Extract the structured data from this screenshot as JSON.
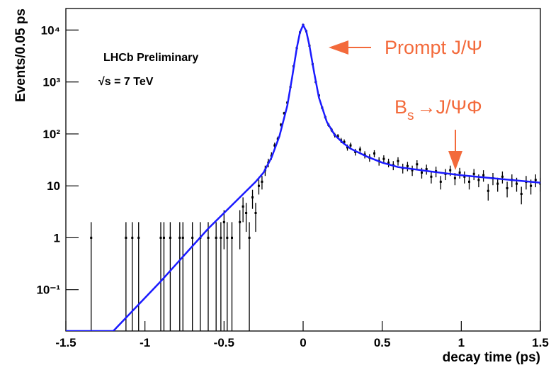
{
  "chart_data": {
    "type": "scatter",
    "x_label": "decay time (ps)",
    "y_label": "Events/0.05 ps",
    "annotations": [
      "LHCb Preliminary",
      "√s = 7 TeV",
      "Prompt J/Ψ"
    ],
    "bs_annotation": [
      "B",
      "s",
      "→J/ΨΦ"
    ],
    "log_y": true,
    "xlim": [
      -1.5,
      1.5
    ],
    "xticks": [
      -1.5,
      -1,
      -0.5,
      0,
      0.5,
      1,
      1.5
    ],
    "ylim": [
      0.016,
      26000
    ],
    "yticks": [
      {
        "value": 0.1,
        "label": "10⁻¹"
      },
      1,
      10,
      {
        "value": 100,
        "label": "10²"
      },
      {
        "value": 1000,
        "label": "10³"
      },
      {
        "value": 10000,
        "label": "10⁴"
      }
    ],
    "points": {
      "color": "#000000",
      "x": [
        -1.34,
        -1.12,
        -1.08,
        -1.04,
        -0.9,
        -0.88,
        -0.84,
        -0.78,
        -0.76,
        -0.7,
        -0.65,
        -0.6,
        -0.55,
        -0.52,
        -0.5,
        -0.48,
        -0.45,
        -0.4,
        -0.38,
        -0.36,
        -0.34,
        -0.32,
        -0.3,
        -0.28,
        -0.26,
        -0.24,
        -0.22,
        -0.2,
        -0.18,
        -0.16,
        -0.14,
        -0.12,
        -0.1,
        -0.08,
        -0.06,
        -0.04,
        -0.02,
        0,
        0.02,
        0.04,
        0.06,
        0.08,
        0.1,
        0.12,
        0.14,
        0.16,
        0.18,
        0.2,
        0.22,
        0.24,
        0.26,
        0.28,
        0.3,
        0.33,
        0.36,
        0.39,
        0.42,
        0.45,
        0.48,
        0.51,
        0.54,
        0.57,
        0.6,
        0.63,
        0.66,
        0.69,
        0.72,
        0.75,
        0.78,
        0.81,
        0.84,
        0.87,
        0.9,
        0.93,
        0.96,
        0.99,
        1.02,
        1.05,
        1.08,
        1.11,
        1.14,
        1.17,
        1.2,
        1.23,
        1.26,
        1.29,
        1.32,
        1.35,
        1.38,
        1.41,
        1.44,
        1.47,
        1.5
      ],
      "values": [
        1,
        1,
        1,
        1,
        1,
        1,
        1,
        1,
        1,
        1,
        1,
        1,
        1,
        1,
        2,
        1,
        1,
        2,
        4,
        3,
        1,
        6,
        3,
        10,
        12,
        20,
        28,
        38,
        60,
        80,
        150,
        250,
        400,
        800,
        2000,
        4500,
        9000,
        12500,
        9500,
        5000,
        2200,
        1000,
        550,
        320,
        210,
        150,
        120,
        95,
        90,
        75,
        70,
        55,
        60,
        45,
        50,
        40,
        35,
        42,
        30,
        33,
        28,
        25,
        30,
        22,
        24,
        20,
        26,
        18,
        21,
        15,
        19,
        12,
        17,
        20,
        14,
        18,
        15,
        12,
        17,
        13,
        16,
        8,
        14,
        11,
        15,
        9,
        13,
        11,
        7,
        12,
        10,
        13,
        11
      ],
      "errors": [
        1,
        1,
        1,
        1,
        1,
        1,
        1,
        1,
        1,
        1,
        1,
        1,
        1,
        1,
        1.4,
        1,
        1,
        1.4,
        2,
        1.7,
        1,
        2.4,
        1.7,
        3.2,
        3.5,
        4.5,
        5.3,
        6.2,
        7.7,
        8.9,
        12,
        16,
        20,
        28,
        45,
        67,
        95,
        112,
        97,
        71,
        47,
        32,
        23,
        18,
        14,
        12,
        11,
        9.7,
        9.5,
        8.7,
        8.4,
        7.4,
        7.7,
        6.7,
        7.1,
        6.3,
        5.9,
        6.5,
        5.5,
        5.7,
        5.3,
        5,
        5.5,
        4.7,
        4.9,
        4.5,
        5.1,
        4.2,
        4.6,
        3.9,
        4.4,
        3.5,
        4.1,
        4.5,
        3.7,
        4.2,
        3.9,
        3.5,
        4.1,
        3.6,
        4,
        2.8,
        3.7,
        3.3,
        3.9,
        3,
        3.6,
        3.3,
        2.6,
        3.5,
        3.2,
        3.6,
        3.3
      ]
    },
    "fit": {
      "color": "#1a1aff",
      "x": [
        -1.5,
        -1.2,
        -0.9,
        -0.6,
        -0.3,
        -0.25,
        -0.2,
        -0.15,
        -0.1,
        -0.07,
        -0.04,
        -0.02,
        0,
        0.02,
        0.04,
        0.07,
        0.1,
        0.15,
        0.2,
        0.25,
        0.3,
        0.4,
        0.5,
        0.6,
        0.8,
        1.0,
        1.2,
        1.5
      ],
      "values": [
        0.016,
        0.016,
        0.145,
        1.5,
        12,
        18,
        35,
        90,
        350,
        1200,
        4500,
        9000,
        12500,
        9500,
        5000,
        1500,
        500,
        170,
        95,
        68,
        52,
        37,
        28,
        23,
        19,
        16,
        14,
        11.5
      ]
    }
  }
}
